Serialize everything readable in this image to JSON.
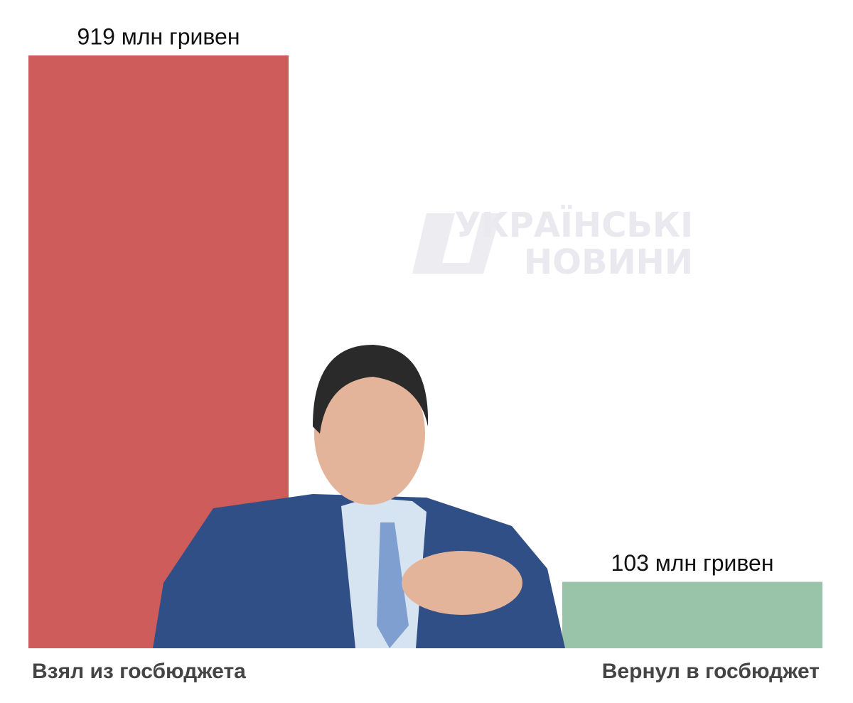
{
  "chart_data": {
    "type": "bar",
    "categories": [
      "Взял из госбюджета",
      "Вернул в госбюджет"
    ],
    "values": [
      919,
      103
    ],
    "value_labels": [
      "919 млн гривен",
      "103 млн гривен"
    ],
    "colors": [
      "#cd5c5a",
      "#9ac4a9"
    ],
    "ylim": [
      0,
      919
    ],
    "watermark": [
      "УКРАЇНСЬКІ",
      "НОВИНИ"
    ]
  }
}
